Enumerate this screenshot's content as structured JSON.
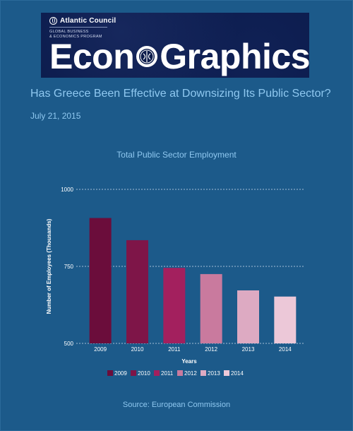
{
  "banner": {
    "org_name": "Atlantic Council",
    "program_line1": "GLOBAL BUSINESS",
    "program_line2": "& ECONOMICS PROGRAM",
    "title_part1": "Econ",
    "title_part2": "Graphics"
  },
  "headline": "Has Greece Been Effective at Downsizing Its Public Sector?",
  "date": "July 21, 2015",
  "source": "Source: European Commission",
  "colors": {
    "background": "#1c5a8a",
    "text_accent": "#8fc8f0",
    "banner_bg": "#0a1a4a"
  },
  "chart_data": {
    "type": "bar",
    "title": "Total Public Sector Employment",
    "xlabel": "Years",
    "ylabel": "Number of Employees (Thousands)",
    "categories": [
      "2009",
      "2010",
      "2011",
      "2012",
      "2013",
      "2014"
    ],
    "values": [
      907,
      835,
      745,
      725,
      672,
      652
    ],
    "colors": [
      "#6b0d3b",
      "#7e1548",
      "#a3205e",
      "#c97a9e",
      "#ddaac2",
      "#ecc8d8"
    ],
    "ylim": [
      500,
      1000
    ],
    "yticks": [
      500,
      750,
      1000
    ],
    "grid": true,
    "legend_position": "bottom",
    "legend": [
      "2009",
      "2010",
      "2011",
      "2012",
      "2013",
      "2014"
    ]
  }
}
